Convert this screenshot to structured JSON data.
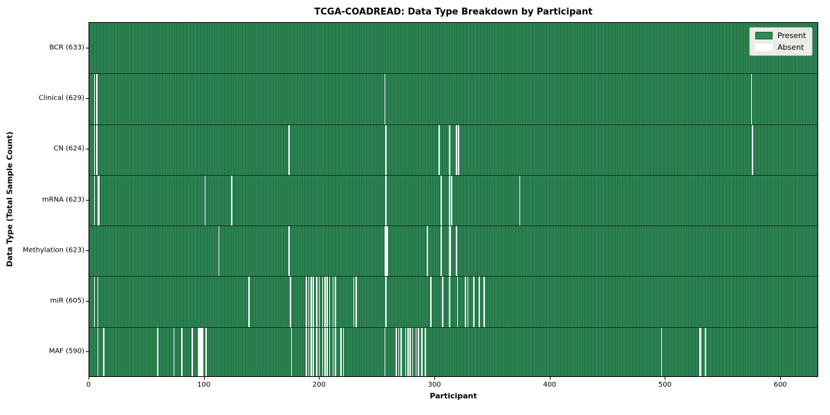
{
  "title": "TCGA-COADREAD: Data Type Breakdown by Participant",
  "chart_data": {
    "type": "heatmap",
    "title": "TCGA-COADREAD: Data Type Breakdown by Participant",
    "xlabel": "Participant",
    "ylabel": "Data Type (Total Sample Count)",
    "x_range": [
      0,
      633
    ],
    "x_ticks": [
      0,
      100,
      200,
      300,
      400,
      500,
      600
    ],
    "total_participants": 633,
    "grid": false,
    "legend": {
      "position": "upper right",
      "entries": [
        {
          "label": "Present",
          "color": "#2e8b57"
        },
        {
          "label": "Absent",
          "color": "#ffffff"
        }
      ]
    },
    "rows": [
      {
        "label": "BCR (633)",
        "name": "BCR",
        "present_count": 633,
        "absent_participants": []
      },
      {
        "label": "Clinical (629)",
        "name": "Clinical",
        "present_count": 629,
        "absent_participants": [
          4,
          6,
          256,
          574
        ]
      },
      {
        "label": "CN (624)",
        "name": "CN",
        "present_count": 624,
        "absent_participants": [
          4,
          6,
          173,
          257,
          303,
          312,
          318,
          320,
          575
        ]
      },
      {
        "label": "mRNA (623)",
        "name": "mRNA",
        "present_count": 623,
        "absent_participants": [
          4,
          7,
          8,
          100,
          123,
          257,
          305,
          312,
          314,
          373
        ]
      },
      {
        "label": "Methylation (623)",
        "name": "Methylation",
        "present_count": 623,
        "absent_participants": [
          112,
          173,
          256,
          257,
          258,
          293,
          305,
          312,
          313,
          318
        ]
      },
      {
        "label": "miR (605)",
        "name": "miR",
        "present_count": 605,
        "absent_participants": [
          4,
          7,
          138,
          174,
          188,
          190,
          192,
          194,
          197,
          199,
          202,
          204,
          206,
          208,
          211,
          213,
          229,
          231,
          257,
          296,
          306,
          312,
          319,
          326,
          328,
          333,
          338,
          342
        ]
      },
      {
        "label": "MAF (590)",
        "name": "MAF",
        "present_count": 590,
        "absent_participants": [
          7,
          12,
          59,
          73,
          80,
          89,
          94,
          95,
          96,
          97,
          98,
          101,
          175,
          188,
          190,
          192,
          194,
          197,
          199,
          202,
          204,
          206,
          208,
          211,
          213,
          218,
          220,
          256,
          266,
          268,
          270,
          274,
          276,
          278,
          280,
          283,
          285,
          288,
          291,
          496,
          529,
          530,
          534
        ]
      }
    ],
    "colors": {
      "present_fill": "#2e8b57",
      "present_edge": "#1e5e3a",
      "absent_fill": "#ffffff",
      "row_separator": "#142f1f",
      "plot_border": "#000000"
    }
  }
}
